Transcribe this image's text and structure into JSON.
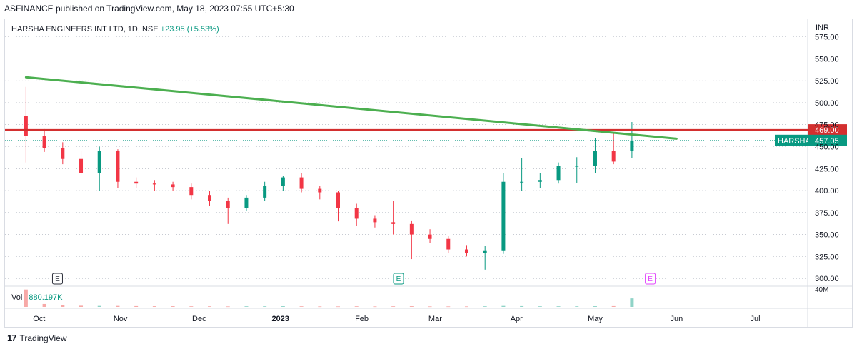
{
  "header": {
    "publish_line": "ASFINANCE published on TradingView.com, May 18, 2023 07:55 UTC+5:30"
  },
  "legend": {
    "symbol": "HARSHA ENGINEERS INT LTD, 1D, NSE",
    "change": "+23.95 (+5.53%)"
  },
  "volume_legend": {
    "label": "Vol",
    "value": "880.197K"
  },
  "footer": {
    "brand": "TradingView",
    "logo_glyph": "17"
  },
  "colors": {
    "up": "#089981",
    "down": "#f23645",
    "trend": "#4caf50",
    "resistance": "#d32f2f",
    "grid": "#e0e3eb"
  },
  "chart_data": {
    "type": "candlestick",
    "currency_label": "INR",
    "ylim": [
      292,
      595
    ],
    "y_ticks": [
      300,
      325,
      350,
      375,
      400,
      425,
      450,
      475,
      500,
      525,
      550,
      575
    ],
    "y_tick_labels": [
      "300.00",
      "325.00",
      "350.00",
      "375.00",
      "400.00",
      "425.00",
      "450.00",
      "475.00",
      "500.00",
      "525.00",
      "550.00",
      "575.00"
    ],
    "x_range": [
      "2023-09-18",
      "2024-07-21"
    ],
    "x_ticks": [
      {
        "date": "2022-10-01",
        "label": "Oct"
      },
      {
        "date": "2022-11-01",
        "label": "Nov"
      },
      {
        "date": "2022-12-01",
        "label": "Dec"
      },
      {
        "date": "2023-01-01",
        "label": "2023"
      },
      {
        "date": "2023-02-01",
        "label": "Feb"
      },
      {
        "date": "2023-03-01",
        "label": "Mar"
      },
      {
        "date": "2023-04-01",
        "label": "Apr"
      },
      {
        "date": "2023-05-01",
        "label": "May"
      },
      {
        "date": "2023-06-01",
        "label": "Jun"
      },
      {
        "date": "2023-07-01",
        "label": "Jul"
      }
    ],
    "dates": [
      "2022-09-26",
      "2022-10-03",
      "2022-10-10",
      "2022-10-17",
      "2022-10-24",
      "2022-10-31",
      "2022-11-07",
      "2022-11-14",
      "2022-11-21",
      "2022-11-28",
      "2022-12-05",
      "2022-12-12",
      "2022-12-19",
      "2022-12-26",
      "2023-01-02",
      "2023-01-09",
      "2023-01-16",
      "2023-01-23",
      "2023-01-30",
      "2023-02-06",
      "2023-02-13",
      "2023-02-20",
      "2023-02-27",
      "2023-03-06",
      "2023-03-13",
      "2023-03-20",
      "2023-03-27",
      "2023-04-03",
      "2023-04-10",
      "2023-04-17",
      "2023-04-24",
      "2023-05-01",
      "2023-05-08",
      "2023-05-15"
    ],
    "series": [
      {
        "name": "HARSHA",
        "open": [
          485,
          462,
          448,
          436,
          420,
          445,
          410,
          408,
          407,
          404,
          395,
          388,
          380,
          392,
          405,
          415,
          402,
          398,
          380,
          368,
          364,
          362,
          350,
          345,
          333,
          329,
          332,
          410,
          410,
          412,
          428,
          428,
          445,
          445
        ],
        "close": [
          462,
          448,
          436,
          420,
          445,
          410,
          408,
          407,
          404,
          395,
          388,
          380,
          392,
          405,
          415,
          402,
          398,
          380,
          368,
          364,
          362,
          350,
          345,
          333,
          329,
          332,
          410,
          410,
          412,
          428,
          428,
          445,
          433,
          457
        ],
        "high": [
          518,
          470,
          455,
          445,
          450,
          447,
          415,
          412,
          410,
          408,
          400,
          392,
          395,
          410,
          417,
          420,
          405,
          400,
          385,
          372,
          388,
          366,
          356,
          348,
          338,
          337,
          420,
          437,
          420,
          432,
          438,
          460,
          465,
          478
        ],
        "low": [
          432,
          444,
          430,
          418,
          400,
          403,
          403,
          400,
          400,
          390,
          383,
          362,
          377,
          388,
          400,
          398,
          390,
          365,
          360,
          358,
          350,
          322,
          340,
          329,
          325,
          310,
          328,
          400,
          403,
          408,
          409,
          420,
          430,
          437
        ]
      }
    ],
    "volume": {
      "ylim": [
        0,
        2000000
      ],
      "values": [
        1800000,
        300000,
        200000,
        120000,
        100000,
        100000,
        80000,
        70000,
        70000,
        60000,
        60000,
        50000,
        60000,
        60000,
        70000,
        60000,
        50000,
        50000,
        60000,
        50000,
        60000,
        70000,
        50000,
        50000,
        50000,
        60000,
        100000,
        80000,
        60000,
        60000,
        60000,
        70000,
        80000,
        880197
      ],
      "axis_label": "40M"
    },
    "annotations": {
      "trendline": {
        "from": {
          "date": "2022-09-26",
          "price": 529
        },
        "to": {
          "date": "2023-06-01",
          "price": 459
        },
        "color": "#4caf50"
      },
      "resistance": {
        "price": 469,
        "label": "469.00",
        "color": "#d32f2f"
      },
      "last_price": {
        "symbol": "HARSHA",
        "price": 457.05,
        "label": "457.05",
        "color": "#089981"
      },
      "earnings": [
        {
          "date": "2022-10-08",
          "label": "E",
          "color": "#2a2e39"
        },
        {
          "date": "2023-02-15",
          "label": "E",
          "color": "#089981"
        },
        {
          "date": "2023-05-22",
          "label": "E",
          "color": "#e040fb"
        }
      ]
    }
  }
}
